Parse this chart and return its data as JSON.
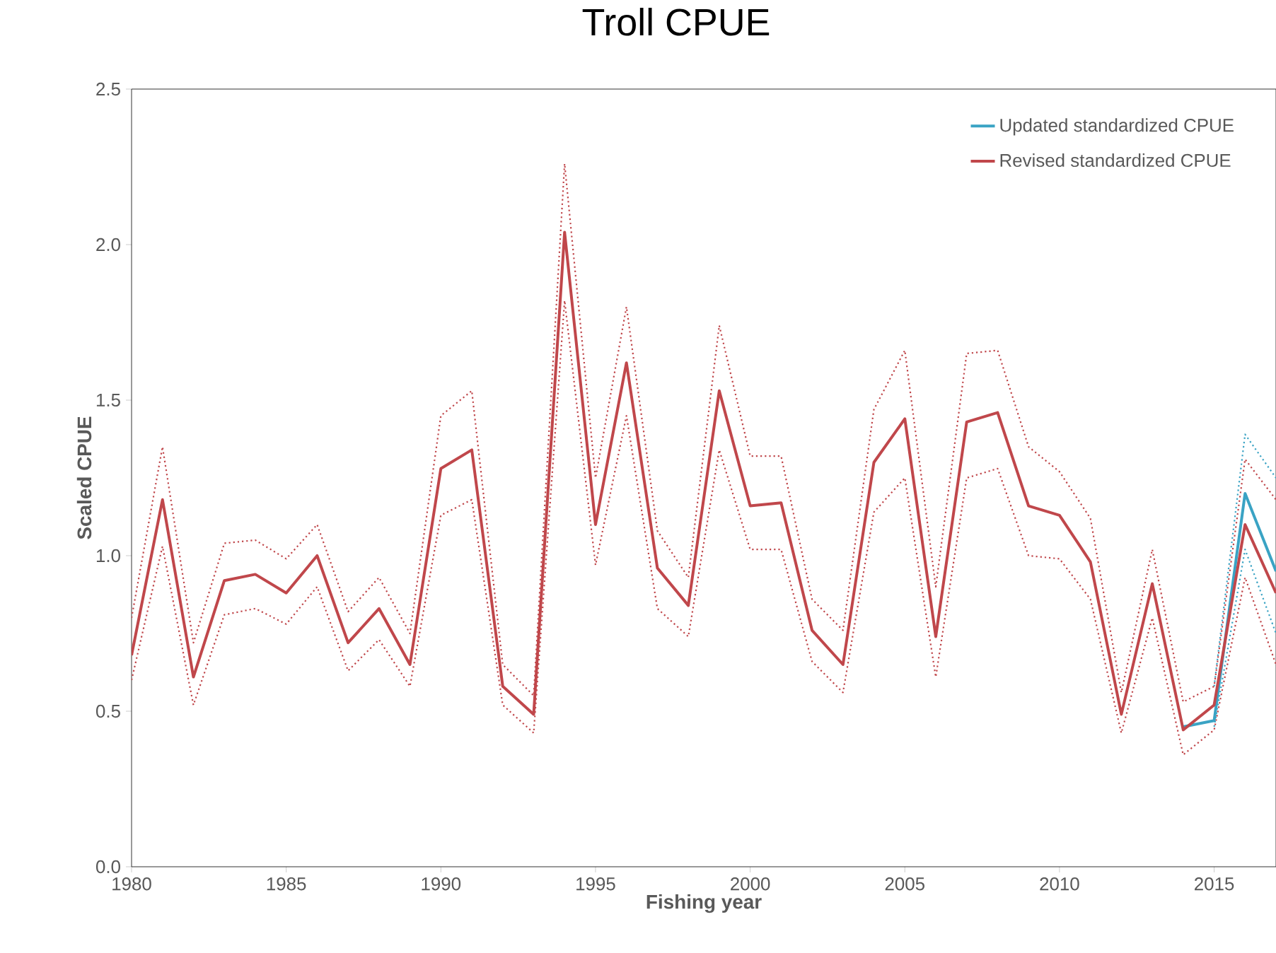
{
  "chart_data": {
    "type": "line",
    "title": "Troll CPUE",
    "xlabel": "Fishing year",
    "ylabel": "Scaled CPUE",
    "x": [
      1980,
      1981,
      1982,
      1983,
      1984,
      1985,
      1986,
      1987,
      1988,
      1989,
      1990,
      1991,
      1992,
      1993,
      1994,
      1995,
      1996,
      1997,
      1998,
      1999,
      2000,
      2001,
      2002,
      2003,
      2004,
      2005,
      2006,
      2007,
      2008,
      2009,
      2010,
      2011,
      2012,
      2013,
      2014,
      2015,
      2016,
      2017
    ],
    "series": [
      {
        "color": "#3aa3c4",
        "line_style": "dotted",
        "values": [
          null,
          null,
          null,
          null,
          null,
          null,
          null,
          null,
          null,
          null,
          null,
          null,
          null,
          null,
          null,
          null,
          null,
          null,
          null,
          null,
          null,
          null,
          null,
          null,
          null,
          null,
          null,
          null,
          null,
          null,
          null,
          null,
          null,
          null,
          null,
          0.58,
          1.39,
          1.25
        ]
      },
      {
        "color": "#3aa3c4",
        "line_style": "dotted",
        "values": [
          null,
          null,
          null,
          null,
          null,
          null,
          null,
          null,
          null,
          null,
          null,
          null,
          null,
          null,
          null,
          null,
          null,
          null,
          null,
          null,
          null,
          null,
          null,
          null,
          null,
          null,
          null,
          null,
          null,
          null,
          null,
          null,
          null,
          null,
          null,
          0.45,
          1.02,
          0.75
        ]
      },
      {
        "color": "#c0474b",
        "line_style": "dotted",
        "values": [
          0.8,
          1.35,
          0.72,
          1.04,
          1.05,
          0.99,
          1.1,
          0.82,
          0.93,
          0.75,
          1.45,
          1.53,
          0.65,
          0.55,
          2.26,
          1.25,
          1.8,
          1.08,
          0.93,
          1.74,
          1.32,
          1.32,
          0.86,
          0.76,
          1.47,
          1.66,
          0.9,
          1.65,
          1.66,
          1.35,
          1.27,
          1.12,
          0.56,
          1.02,
          0.53,
          0.58,
          1.31,
          1.18
        ]
      },
      {
        "color": "#c0474b",
        "line_style": "dotted",
        "values": [
          0.6,
          1.03,
          0.52,
          0.81,
          0.83,
          0.78,
          0.9,
          0.63,
          0.73,
          0.58,
          1.13,
          1.18,
          0.52,
          0.43,
          1.82,
          0.97,
          1.45,
          0.83,
          0.74,
          1.34,
          1.02,
          1.02,
          0.66,
          0.56,
          1.14,
          1.25,
          0.61,
          1.25,
          1.28,
          1.0,
          0.99,
          0.86,
          0.43,
          0.8,
          0.36,
          0.44,
          0.93,
          0.65
        ]
      },
      {
        "name": "Updated standardized CPUE",
        "color": "#3aa3c4",
        "values": [
          null,
          null,
          null,
          null,
          null,
          null,
          null,
          null,
          null,
          null,
          null,
          null,
          null,
          null,
          null,
          null,
          null,
          null,
          null,
          null,
          null,
          null,
          null,
          null,
          null,
          null,
          null,
          null,
          null,
          null,
          null,
          null,
          null,
          null,
          0.45,
          0.47,
          1.2,
          0.95
        ]
      },
      {
        "name": "Revised standardized CPUE",
        "color": "#c0474b",
        "values": [
          0.68,
          1.18,
          0.61,
          0.92,
          0.94,
          0.88,
          1.0,
          0.72,
          0.83,
          0.65,
          1.28,
          1.34,
          0.58,
          0.49,
          2.04,
          1.1,
          1.62,
          0.96,
          0.84,
          1.53,
          1.16,
          1.17,
          0.76,
          0.65,
          1.3,
          1.44,
          0.74,
          1.43,
          1.46,
          1.16,
          1.13,
          0.98,
          0.49,
          0.91,
          0.44,
          0.52,
          1.1,
          0.88
        ]
      }
    ],
    "xlim": [
      1980,
      2017
    ],
    "ylim": [
      0,
      2.5
    ],
    "xticks": [
      1980,
      1985,
      1990,
      1995,
      2000,
      2005,
      2010,
      2015
    ],
    "yticks": [
      {
        "value": 0,
        "label": "0.0"
      },
      {
        "value": 0.5,
        "label": "0.5"
      },
      {
        "value": 1,
        "label": "1.0"
      },
      {
        "value": 1.5,
        "label": "1.5"
      },
      {
        "value": 2,
        "label": "2.0"
      },
      {
        "value": 2.5,
        "label": "2.5"
      }
    ],
    "grid": false,
    "legend": "top right",
    "marker": "none",
    "line_style": "solid"
  }
}
